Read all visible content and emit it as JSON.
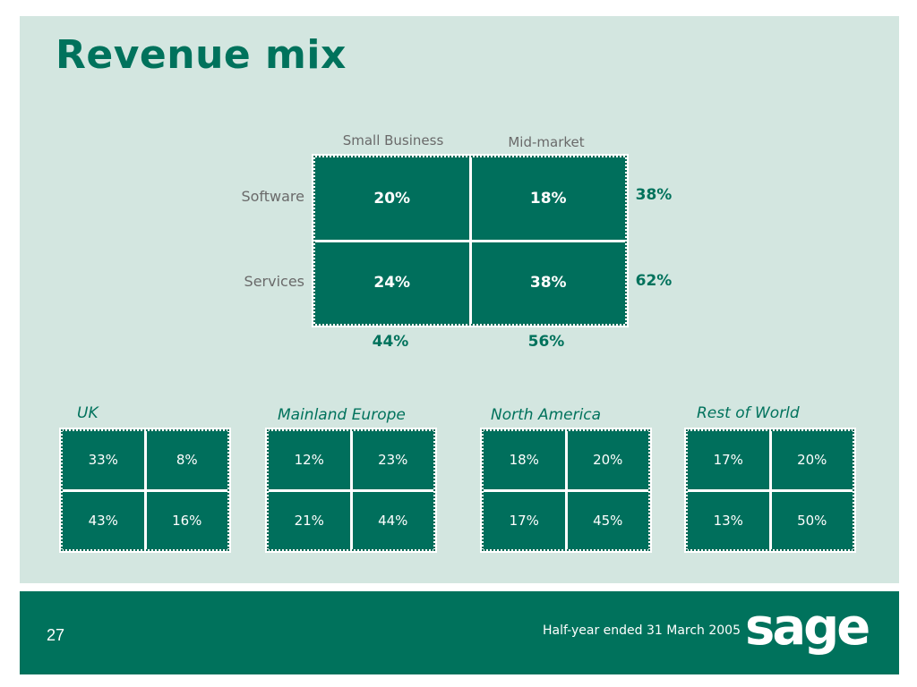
{
  "slide": {
    "title": "Revenue mix",
    "page_number": "27",
    "period": "Half-year ended 31 March 2005",
    "logo_text": "sage",
    "colors": {
      "brand_green": "#00725c",
      "panel_bg": "#d3e6e0",
      "label_grey": "#6a6a6a"
    }
  },
  "matrix": {
    "columns": [
      "Small Business",
      "Mid-market"
    ],
    "rows": [
      "Software",
      "Services"
    ],
    "cells": [
      [
        "20%",
        "18%"
      ],
      [
        "24%",
        "38%"
      ]
    ],
    "row_totals": [
      "38%",
      "62%"
    ],
    "col_totals": [
      "44%",
      "56%"
    ]
  },
  "regions": [
    {
      "name": "UK",
      "cells": [
        [
          "33%",
          "8%"
        ],
        [
          "43%",
          "16%"
        ]
      ]
    },
    {
      "name": "Mainland Europe",
      "cells": [
        [
          "12%",
          "23%"
        ],
        [
          "21%",
          "44%"
        ]
      ]
    },
    {
      "name": "North America",
      "cells": [
        [
          "18%",
          "20%"
        ],
        [
          "17%",
          "45%"
        ]
      ]
    },
    {
      "name": "Rest of World",
      "cells": [
        [
          "17%",
          "20%"
        ],
        [
          "13%",
          "50%"
        ]
      ]
    }
  ]
}
